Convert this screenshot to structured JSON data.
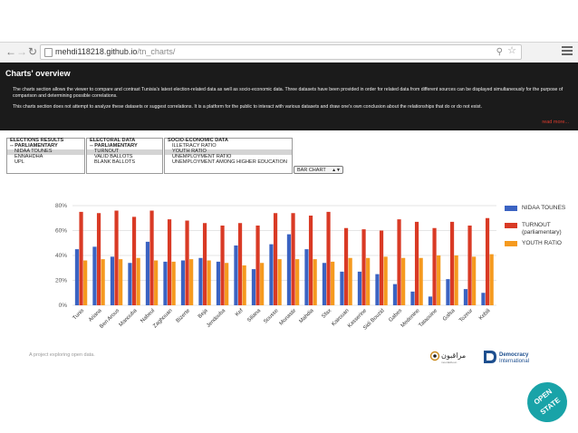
{
  "browser": {
    "url_host": "mehdi118218.github.io",
    "url_path": "/tn_charts/"
  },
  "header": {
    "title": "Charts' overview",
    "paragraph1": "The charts section allows the viewer to compare and contrast Tunisia's latest election-related data as well as socio-economic data. Three datasets have been provided in order for related data from different sources can be displayed simultaneously for the purpose of comparison and determining possible correlations.",
    "paragraph2": "This charts section does not attempt to analyze these datasets or suggest correlations. It is a platform for the public to interact with various datasets and draw one's own conclusion about the relationships that do or do not exist.",
    "read_more": "read more..."
  },
  "selectors": {
    "elections": {
      "header": "ELECTIONS RESULTS",
      "options": [
        {
          "label": "-- PARLIAMENTARY",
          "kind": "grp",
          "selected": false
        },
        {
          "label": "NIDAA TOUNES",
          "kind": "sub",
          "selected": true
        },
        {
          "label": "ENNAHDHA",
          "kind": "sub",
          "selected": false
        },
        {
          "label": "UPL",
          "kind": "sub",
          "selected": false
        }
      ]
    },
    "electoral": {
      "header": "ELECTORAL DATA",
      "options": [
        {
          "label": "-- PARLIAMENTARY",
          "kind": "grp",
          "selected": false
        },
        {
          "label": "TURNOUT",
          "kind": "sub",
          "selected": true
        },
        {
          "label": "VALID BALLOTS",
          "kind": "sub",
          "selected": false
        },
        {
          "label": "BLANK BALLOTS",
          "kind": "sub",
          "selected": false
        }
      ]
    },
    "socio": {
      "header": "SOCIO-ECONOMIC DATA",
      "options": [
        {
          "label": "ILLETRACY RATIO",
          "kind": "sub",
          "selected": false
        },
        {
          "label": "YOUTH RATIO",
          "kind": "sub",
          "selected": true
        },
        {
          "label": "UNEMPLOYMENT RATIO",
          "kind": "sub",
          "selected": false
        },
        {
          "label": "UNEMPLOYMENT AMONG HIGHER EDUCATION",
          "kind": "sub",
          "selected": false
        }
      ]
    },
    "chart_type": "BAR CHART"
  },
  "chart_data": {
    "type": "bar",
    "categories": [
      "Tunis",
      "Ariana",
      "Ben Arous",
      "Manouba",
      "Nabeul",
      "Zaghouan",
      "Bizerte",
      "Beja",
      "Jendouba",
      "Kef",
      "Siliana",
      "Sousse",
      "Monastir",
      "Mahdia",
      "Sfax",
      "Kairouan",
      "Kasserine",
      "Sidi Bouzid",
      "Gabes",
      "Medenine",
      "Tataouine",
      "Gafsa",
      "Tozeur",
      "Kebili"
    ],
    "series": [
      {
        "name": "NIDAA TOUNES",
        "color": "#3b63c2",
        "values": [
          45,
          47,
          39,
          34,
          51,
          35,
          36,
          38,
          35,
          48,
          29,
          49,
          57,
          45,
          34,
          27,
          27,
          25,
          17,
          11,
          7,
          21,
          13,
          10
        ]
      },
      {
        "name": "TURNOUT (parliamentary)",
        "color": "#d93a25",
        "values": [
          75,
          74,
          76,
          71,
          76,
          69,
          68,
          66,
          64,
          66,
          64,
          74,
          74,
          72,
          75,
          62,
          61,
          60,
          69,
          67,
          62,
          67,
          64,
          70
        ]
      },
      {
        "name": "YOUTH RATIO",
        "color": "#f59a1f",
        "values": [
          36,
          37,
          37,
          38,
          36,
          35,
          37,
          36,
          34,
          32,
          34,
          37,
          37,
          37,
          35,
          38,
          38,
          39,
          38,
          38,
          40,
          40,
          39,
          41
        ]
      }
    ],
    "legend": [
      "NIDAA TOUNES",
      "TURNOUT (parliamentary)",
      "YOUTH RATIO"
    ],
    "legend_placement": "right",
    "ylim": [
      0,
      80
    ],
    "yticks": [
      "0%",
      "20%",
      "40%",
      "60%",
      "80%"
    ],
    "grid": true
  },
  "footer": {
    "tagline": "A project exploring open data.",
    "logo_arabic": "مراقبون",
    "logo_arabic_sub": "mourakiboun",
    "logo_di_1": "Democracy",
    "logo_di_2": "International",
    "badge_1": "OPEN",
    "badge_2": "STATE"
  }
}
